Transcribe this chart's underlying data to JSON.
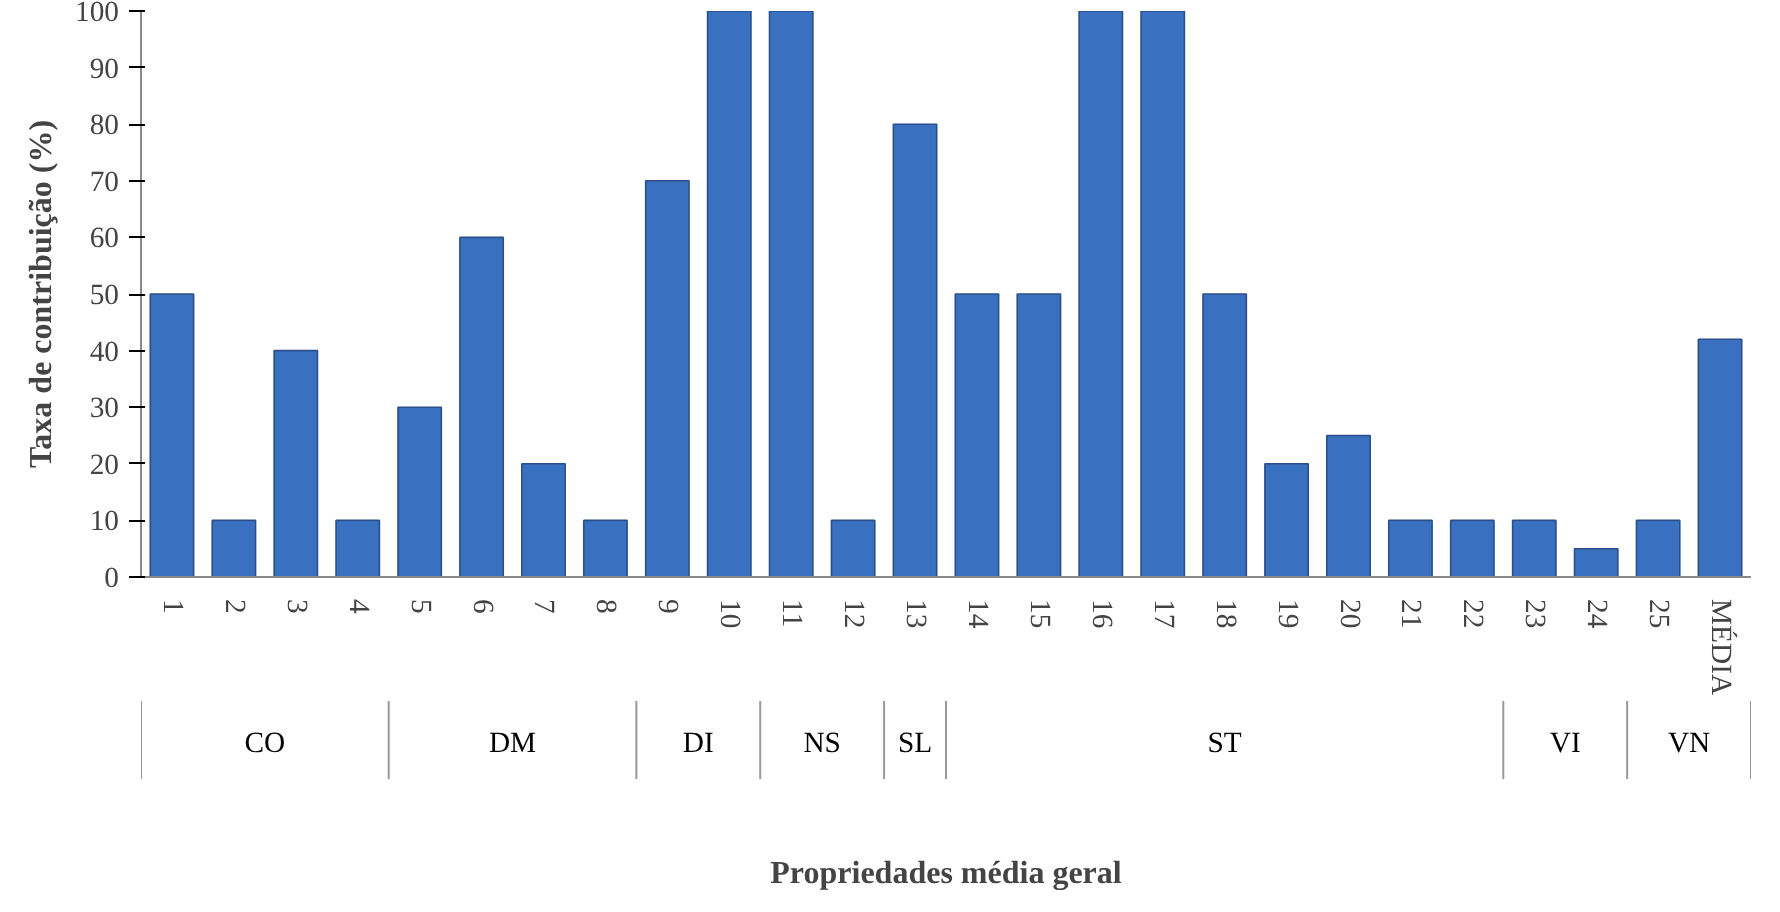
{
  "chart_data": {
    "type": "bar",
    "ylabel": "Taxa de contribuição (%)",
    "categories": [
      "1",
      "2",
      "3",
      "4",
      "5",
      "6",
      "7",
      "8",
      "9",
      "10",
      "11",
      "12",
      "13",
      "14",
      "15",
      "16",
      "17",
      "18",
      "19",
      "20",
      "21",
      "22",
      "23",
      "24",
      "25",
      "MÉDIA"
    ],
    "values": [
      50,
      10,
      40,
      10,
      30,
      60,
      20,
      10,
      70,
      100,
      100,
      10,
      80,
      50,
      50,
      100,
      100,
      50,
      20,
      25,
      10,
      10,
      10,
      5,
      10,
      42
    ],
    "color": "#3a70c0",
    "ylim": [
      0,
      100
    ],
    "yticks": [
      0,
      10,
      20,
      30,
      40,
      50,
      60,
      70,
      80,
      90,
      100
    ],
    "annotations": [
      "CO",
      "DM",
      "DI",
      "NS",
      "SL",
      "ST",
      "VI",
      "VN",
      "Propriedades média geral"
    ],
    "grid": false
  }
}
